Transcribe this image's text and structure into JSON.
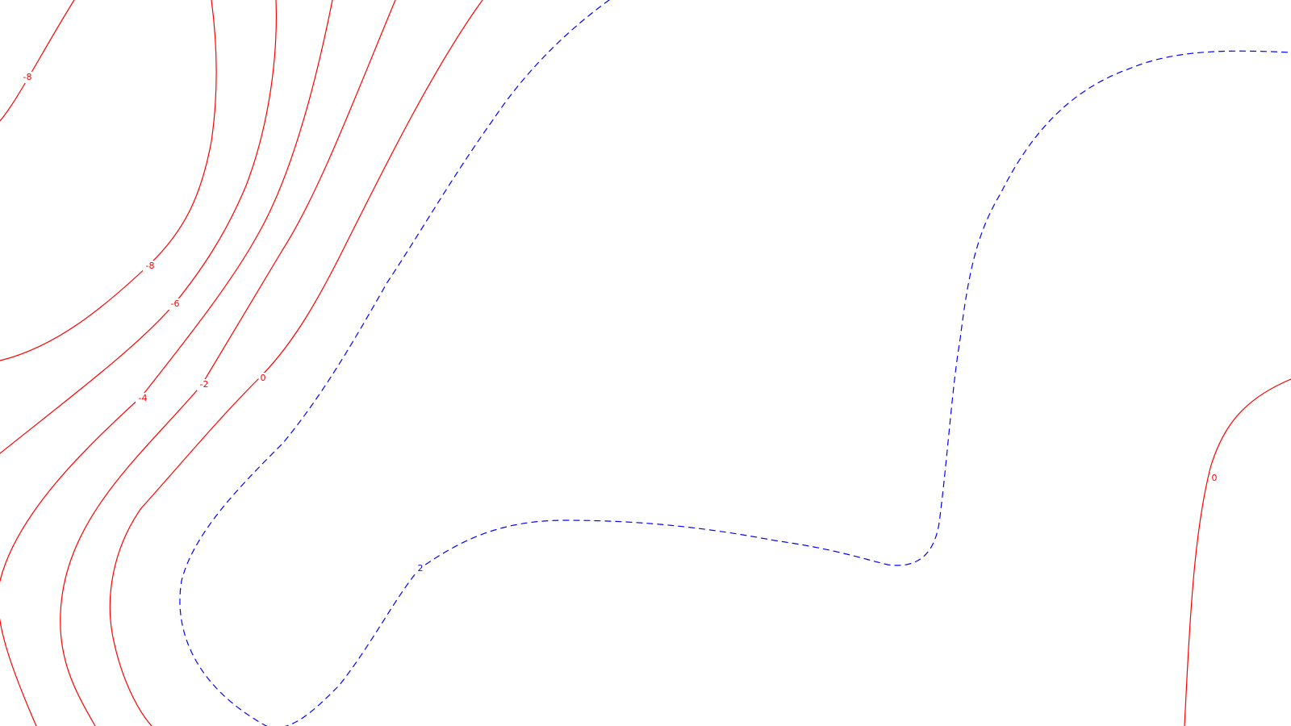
{
  "chart_data": {
    "type": "contour",
    "title": "",
    "xlabel": "",
    "ylabel": "",
    "grid": false,
    "legend": "none",
    "colors": {
      "negative_and_zero": "#ff0000",
      "positive": "#0000ff"
    },
    "levels": [
      {
        "value": -8,
        "label": "-8",
        "color": "#ff0000",
        "dash": "solid",
        "label_count": 2
      },
      {
        "value": -6,
        "label": "-6",
        "color": "#ff0000",
        "dash": "solid",
        "label_count": 1
      },
      {
        "value": -4,
        "label": "-4",
        "color": "#ff0000",
        "dash": "solid",
        "label_count": 1
      },
      {
        "value": -2,
        "label": "-2",
        "color": "#ff0000",
        "dash": "solid",
        "label_count": 1
      },
      {
        "value": 0,
        "label": "0",
        "color": "#ff0000",
        "dash": "solid",
        "label_count": 2
      },
      {
        "value": 2,
        "label": "2",
        "color": "#0000ff",
        "dash": "dashed",
        "label_count": 1
      }
    ]
  }
}
